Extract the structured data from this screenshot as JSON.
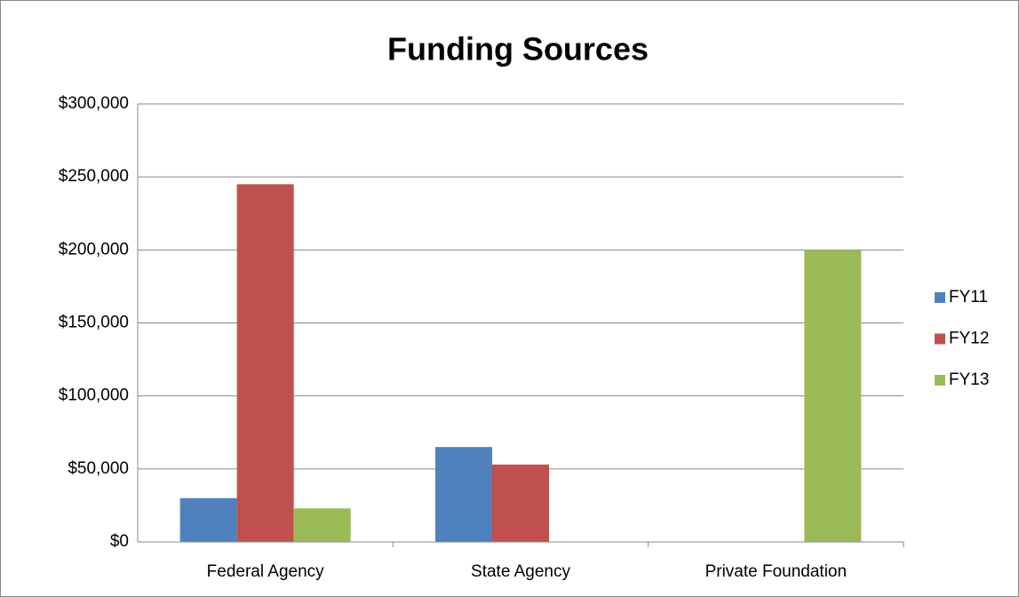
{
  "chart_data": {
    "type": "bar",
    "title": "Funding Sources",
    "categories": [
      "Federal Agency",
      "State Agency",
      "Private Foundation"
    ],
    "series": [
      {
        "name": "FY11",
        "color": "#4f81bd",
        "values": [
          30000,
          65000,
          0
        ]
      },
      {
        "name": "FY12",
        "color": "#c0504d",
        "values": [
          245000,
          53000,
          0
        ]
      },
      {
        "name": "FY13",
        "color": "#9bbb59",
        "values": [
          23000,
          0,
          200000
        ]
      }
    ],
    "ylim": [
      0,
      300000
    ],
    "yticks": [
      {
        "value": 0,
        "label": "$0"
      },
      {
        "value": 50000,
        "label": "$50,000"
      },
      {
        "value": 100000,
        "label": "$100,000"
      },
      {
        "value": 150000,
        "label": "$150,000"
      },
      {
        "value": 200000,
        "label": "$200,000"
      },
      {
        "value": 250000,
        "label": "$250,000"
      },
      {
        "value": 300000,
        "label": "$300,000"
      }
    ],
    "grid": true,
    "legend": "right"
  }
}
